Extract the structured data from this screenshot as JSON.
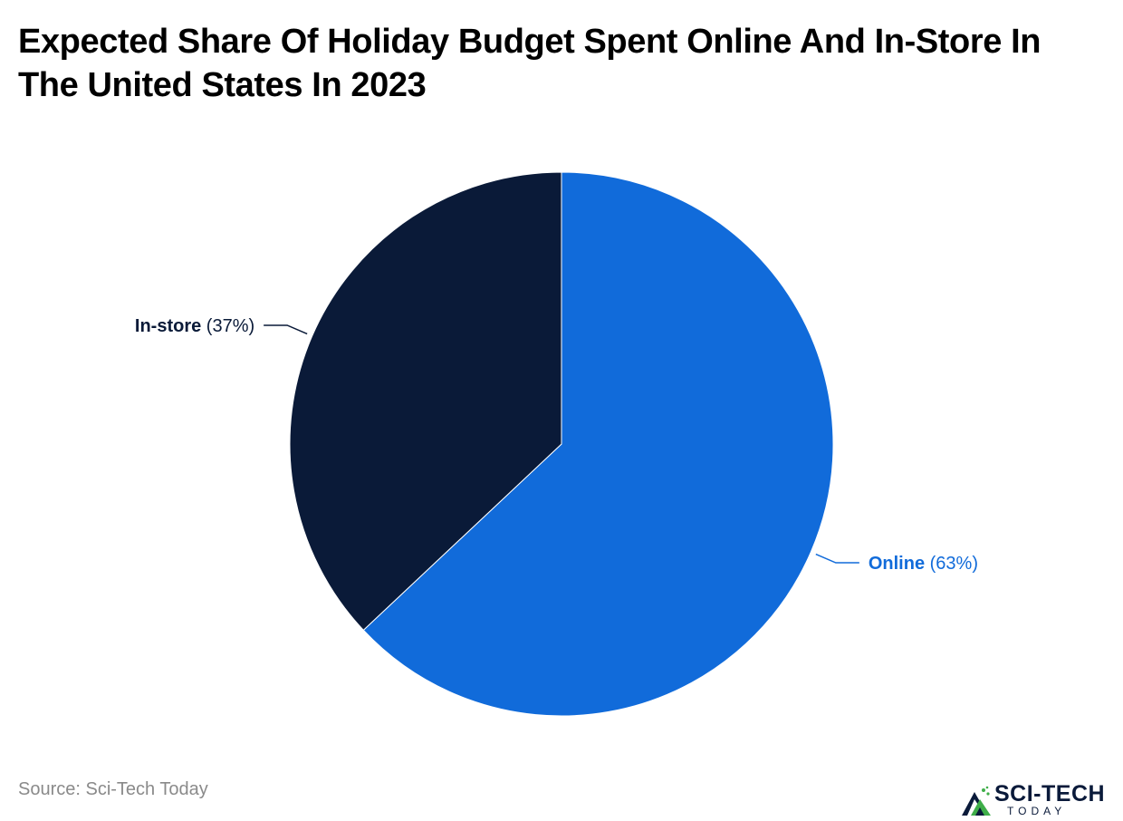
{
  "title": "Expected Share Of Holiday Budget Spent Online And In-Store In The United States In 2023",
  "source": "Source: Sci-Tech Today",
  "logo": {
    "name": "SCI-TECH",
    "subtitle": "TODAY",
    "icon": "mountain-logo-icon"
  },
  "colors": {
    "online": "#116bda",
    "in_store": "#0a1a38",
    "logo_green": "#3fae49",
    "logo_navy": "#0a1a3a"
  },
  "chart_data": {
    "type": "pie",
    "title": "Expected Share Of Holiday Budget Spent Online And In-Store In The United States In 2023",
    "slices": [
      {
        "name": "Online",
        "value": 63,
        "value_label": "(63%)",
        "color": "#116bda"
      },
      {
        "name": "In-store",
        "value": 37,
        "value_label": "(37%)",
        "color": "#0a1a38"
      }
    ],
    "start_angle": "12 o'clock",
    "direction": "clockwise",
    "legend": "none",
    "labels": "outside with leader lines"
  }
}
